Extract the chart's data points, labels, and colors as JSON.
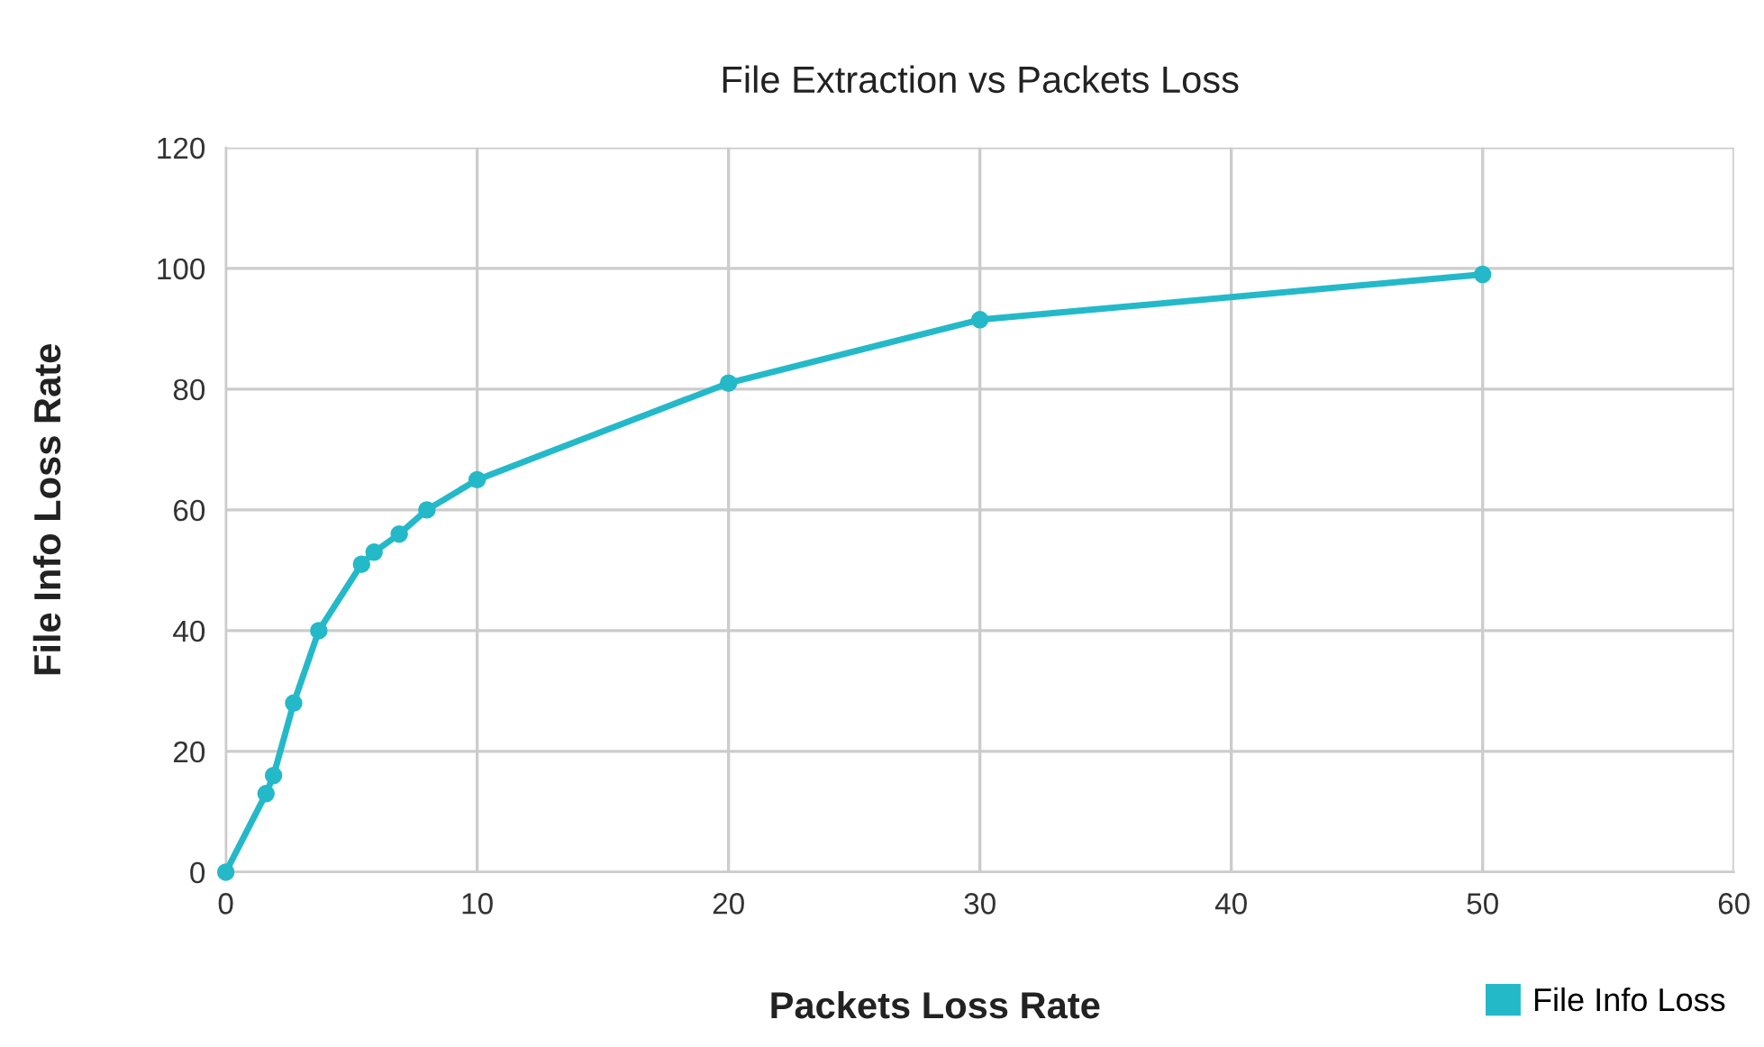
{
  "chart_data": {
    "type": "line",
    "title": "File Extraction vs Packets Loss",
    "xlabel": "Packets Loss Rate",
    "ylabel": "File Info Loss Rate",
    "series": [
      {
        "name": "File Info Loss",
        "color": "#24b9c8",
        "x": [
          0,
          1.6,
          1.9,
          2.7,
          3.7,
          5.4,
          5.9,
          6.9,
          8,
          10,
          20,
          30,
          50
        ],
        "values": [
          0,
          13,
          16,
          28,
          40,
          51,
          53,
          56,
          60,
          65,
          81,
          91.5,
          99
        ]
      }
    ],
    "xlim": [
      0,
      60
    ],
    "xticks": [
      0,
      10,
      20,
      30,
      40,
      50,
      60
    ],
    "ylim": [
      0,
      120
    ],
    "yticks": [
      0,
      20,
      40,
      60,
      80,
      100,
      120
    ],
    "grid": true,
    "legend": "bottom right",
    "marker": "circle",
    "line_style": "solid"
  }
}
